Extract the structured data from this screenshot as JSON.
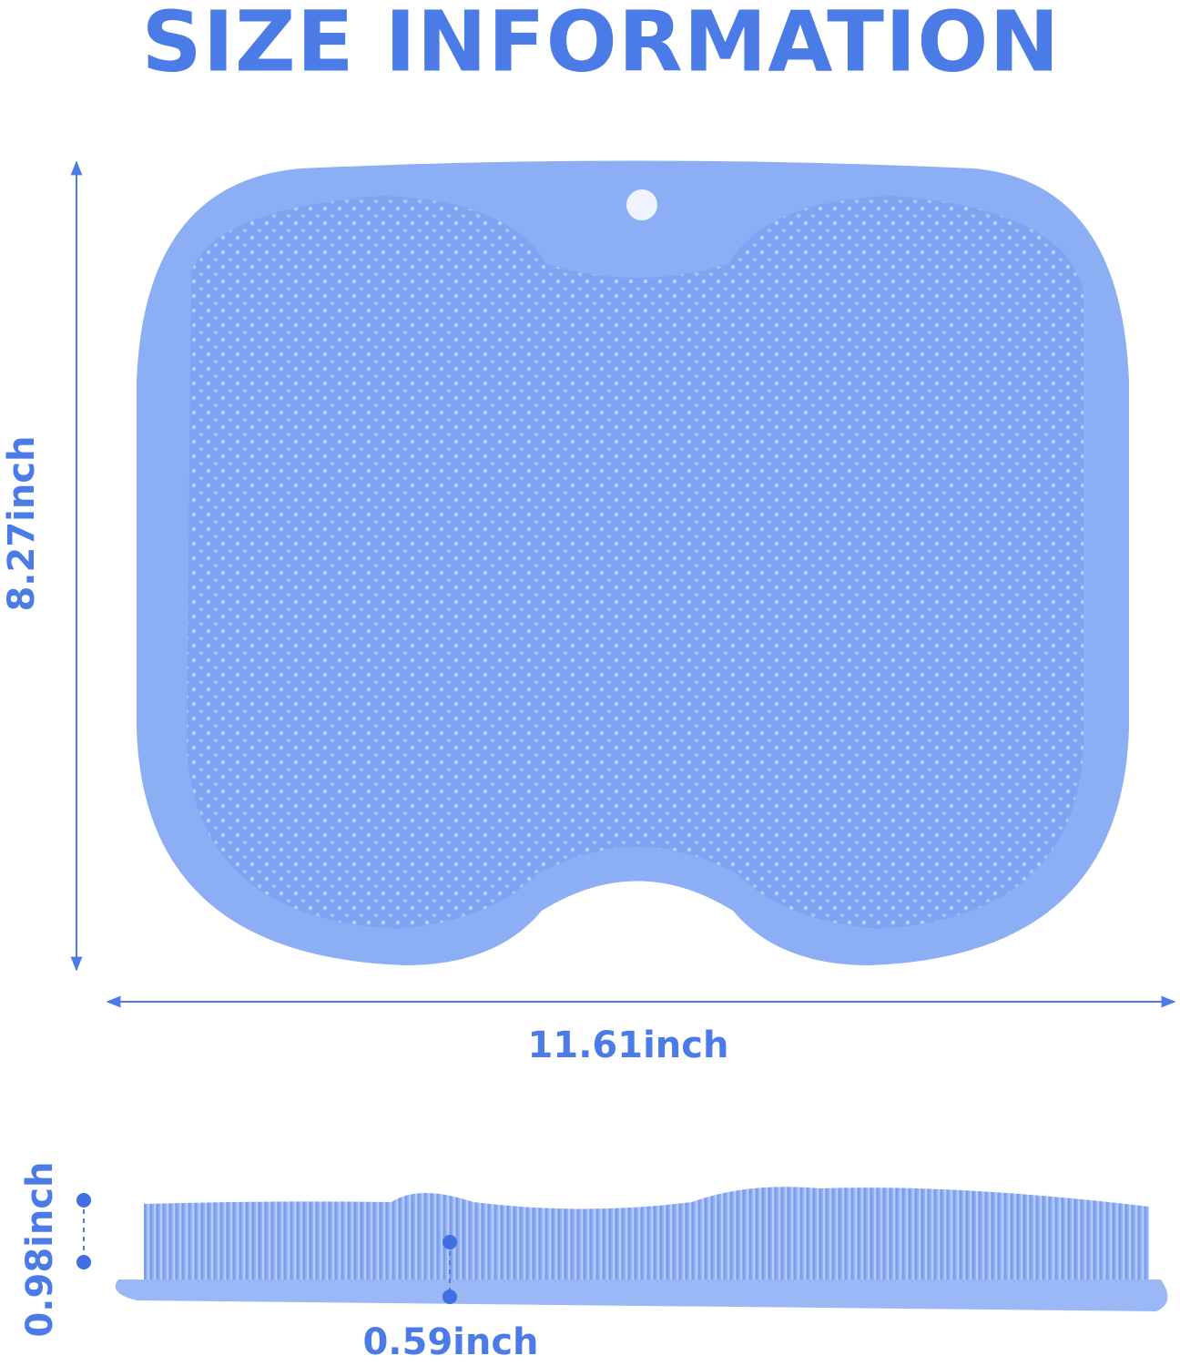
{
  "header": {
    "title": "SIZE INFORMATION"
  },
  "dimensions": {
    "height": "8.27inch",
    "width": "11.61inch",
    "thickness": "0.98inch",
    "bristle_height": "0.59inch"
  }
}
